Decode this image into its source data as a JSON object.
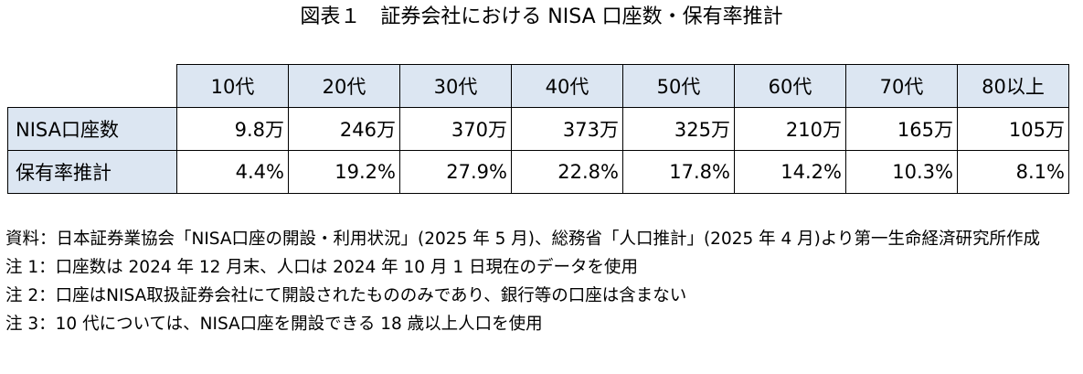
{
  "title": "図表１　証券会社における NISA 口座数・保有率推計",
  "table": {
    "columns": [
      "10代",
      "20代",
      "30代",
      "40代",
      "50代",
      "60代",
      "70代",
      "80以上"
    ],
    "rows": [
      {
        "label": "NISA口座数",
        "cells": [
          "9.8万",
          "246万",
          "370万",
          "373万",
          "325万",
          "210万",
          "165万",
          "105万"
        ]
      },
      {
        "label": "保有率推計",
        "cells": [
          "4.4%",
          "19.2%",
          "27.9%",
          "22.8%",
          "17.8%",
          "14.2%",
          "10.3%",
          "8.1%"
        ]
      }
    ]
  },
  "notes": [
    "資料：日本証券業協会「NISA口座の開設・利用状況」(2025 年 5 月)、総務省「人口推計」(2025 年 4 月)より第一生命経済研究所作成",
    "注 1：口座数は 2024 年 12 月末、人口は 2024 年 10 月 1 日現在のデータを使用",
    "注 2：口座はNISA取扱証券会社にて開設されたもののみであり、銀行等の口座は含まない",
    "注 3：10 代については、NISA口座を開設できる 18 歳以上人口を使用"
  ]
}
